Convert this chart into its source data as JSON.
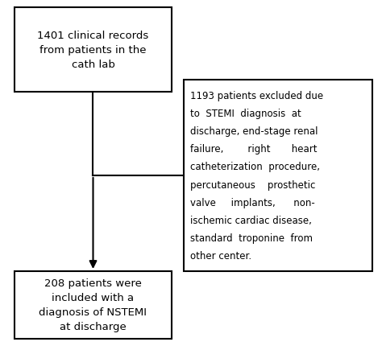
{
  "bg_color": "#ffffff",
  "box1_text": "1401 clinical records\nfrom patients in the\ncath lab",
  "box2_lines": [
    "1193 patients excluded due",
    "to  STEMI  diagnosis  at",
    "discharge, end-stage renal",
    "failure,        right       heart",
    "catheterization  procedure,",
    "percutaneous    prosthetic",
    "valve     implants,      non-",
    "ischemic cardiac disease,",
    "standard  troponine  from",
    "other center."
  ],
  "box3_text": "208 patients were\nincluded with a\ndiagnosis of NSTEMI\nat discharge",
  "box_edge_color": "#000000",
  "box_face_color": "#ffffff",
  "text_color": "#000000",
  "line_color": "#000000",
  "font_size": 8.5,
  "fig_width": 4.74,
  "fig_height": 4.31,
  "dpi": 100
}
